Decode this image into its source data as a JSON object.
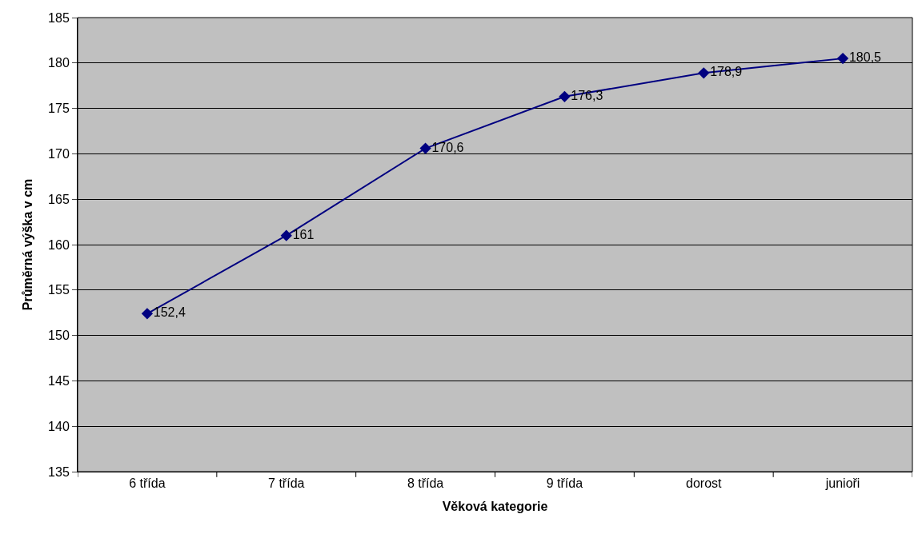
{
  "chart_data": {
    "type": "line",
    "xlabel": "Věková kategorie",
    "ylabel": "Průměrná výška v cm",
    "categories": [
      "6 třída",
      "7 třída",
      "8 třída",
      "9 třída",
      "dorost",
      "junioři"
    ],
    "series": [
      {
        "color": "#000080",
        "values": [
          152.4,
          161,
          170.6,
          176.3,
          178.9,
          180.5
        ],
        "value_labels": [
          "152,4",
          "161",
          "170,6",
          "176,3",
          "178,9",
          "180,5"
        ]
      }
    ],
    "ylim": [
      135,
      185
    ],
    "yticks": [
      135,
      140,
      145,
      150,
      155,
      160,
      165,
      170,
      175,
      180,
      185
    ],
    "grid": "y",
    "legend": false,
    "marker": "diamond",
    "line_style": "solid"
  }
}
